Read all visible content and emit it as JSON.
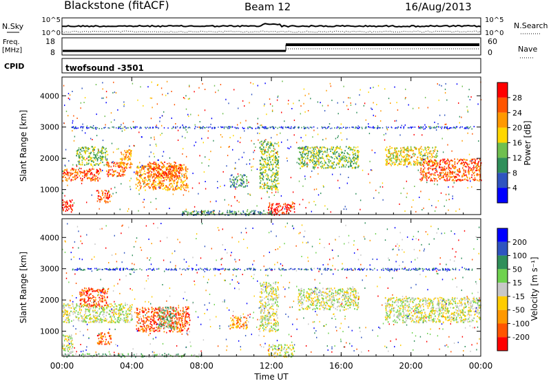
{
  "header": {
    "title": "Blackstone (fitACF)",
    "beam": "Beam 12",
    "date": "16/Aug/2013"
  },
  "nsky_panel": {
    "left_label": "N.Sky",
    "right_label": "N.Search",
    "ytick_top": "10^5",
    "ytick_bottom": "10^0"
  },
  "freq_panel": {
    "left_label_1": "Freq.",
    "left_label_2": "[MHz]",
    "right_label": "Nave",
    "left_ticks": [
      "18",
      "8"
    ],
    "right_ticks": [
      "60",
      "0"
    ]
  },
  "cpid_panel": {
    "label": "CPID",
    "value": "twofsound -3501"
  },
  "colors": {
    "power_scale": [
      "#0000ff",
      "#2f54c0",
      "#2f8f5a",
      "#6fbf4f",
      "#ffd700",
      "#ff9900",
      "#ff5500",
      "#ff0000"
    ],
    "velocity_scale": [
      "#ff0000",
      "#ff5500",
      "#ff9900",
      "#ffcc00",
      "#c8c8c8",
      "#6fd24f",
      "#2f8f5a",
      "#2f54c0",
      "#0000ff"
    ]
  },
  "chart_data": [
    {
      "type": "heatmap",
      "panel": "power",
      "xlabel": "",
      "ylabel": "Slant Range [km]",
      "ylim": [
        200,
        4600
      ],
      "yticks": [
        "1000",
        "2000",
        "3000",
        "4000"
      ],
      "colorbar_label": "Power [dB]",
      "colorbar_ticks": [
        "28",
        "24",
        "20",
        "16",
        "12",
        "8",
        "4"
      ],
      "regions": [
        {
          "t0": 0.0,
          "t1": 0.6,
          "r0": 300,
          "r1": 700,
          "level": 7
        },
        {
          "t0": 0.0,
          "t1": 2.2,
          "r0": 1300,
          "r1": 1700,
          "level": 6
        },
        {
          "t0": 0.8,
          "t1": 2.6,
          "r0": 1800,
          "r1": 2400,
          "level": 3
        },
        {
          "t0": 2.5,
          "t1": 3.6,
          "r0": 1450,
          "r1": 1900,
          "level": 6
        },
        {
          "t0": 3.3,
          "t1": 4.0,
          "r0": 1700,
          "r1": 2300,
          "level": 5
        },
        {
          "t0": 2.0,
          "t1": 2.8,
          "r0": 600,
          "r1": 1000,
          "level": 6
        },
        {
          "t0": 4.2,
          "t1": 7.2,
          "r0": 1000,
          "r1": 1800,
          "level": 5
        },
        {
          "t0": 4.8,
          "t1": 6.8,
          "r0": 1400,
          "r1": 1900,
          "level": 6
        },
        {
          "t0": 9.6,
          "t1": 10.6,
          "r0": 1100,
          "r1": 1500,
          "level": 2
        },
        {
          "t0": 11.8,
          "t1": 13.3,
          "r0": 150,
          "r1": 600,
          "level": 7
        },
        {
          "t0": 11.3,
          "t1": 12.4,
          "r0": 1000,
          "r1": 2600,
          "level": 3
        },
        {
          "t0": 13.5,
          "t1": 17.0,
          "r0": 1700,
          "r1": 2400,
          "level": 3
        },
        {
          "t0": 18.5,
          "t1": 21.5,
          "r0": 1800,
          "r1": 2400,
          "level": 4
        },
        {
          "t0": 20.5,
          "t1": 24.0,
          "r0": 1300,
          "r1": 2000,
          "level": 6
        },
        {
          "t0": 6.8,
          "t1": 12.0,
          "r0": 150,
          "r1": 350,
          "level": 2
        }
      ]
    },
    {
      "type": "heatmap",
      "panel": "velocity",
      "xlabel": "Time UT",
      "ylabel": "Slant Range [km]",
      "ylim": [
        200,
        4600
      ],
      "yticks": [
        "1000",
        "2000",
        "3000",
        "4000"
      ],
      "xticks": [
        "00:00",
        "04:00",
        "08:00",
        "12:00",
        "16:00",
        "20:00",
        "00:00"
      ],
      "xlim": [
        0,
        24
      ],
      "colorbar_label": "Velocity [m s⁻¹]",
      "colorbar_ticks": [
        "200",
        "100",
        "50",
        "15",
        "-15",
        "-50",
        "-100",
        "-200"
      ],
      "regions": [
        {
          "t0": 0.0,
          "t1": 0.6,
          "r0": 300,
          "r1": 900,
          "level": 4
        },
        {
          "t0": 0.0,
          "t1": 4.0,
          "r0": 1300,
          "r1": 1900,
          "level": 4
        },
        {
          "t0": 1.0,
          "t1": 2.6,
          "r0": 1800,
          "r1": 2400,
          "level": 1
        },
        {
          "t0": 2.0,
          "t1": 2.8,
          "r0": 600,
          "r1": 1000,
          "level": 1
        },
        {
          "t0": 4.2,
          "t1": 7.3,
          "r0": 1000,
          "r1": 1800,
          "level": 1
        },
        {
          "t0": 5.5,
          "t1": 6.5,
          "r0": 1100,
          "r1": 1800,
          "level": 5
        },
        {
          "t0": 9.6,
          "t1": 10.6,
          "r0": 1100,
          "r1": 1500,
          "level": 2
        },
        {
          "t0": 11.8,
          "t1": 13.3,
          "r0": 150,
          "r1": 600,
          "level": 4
        },
        {
          "t0": 11.3,
          "t1": 12.4,
          "r0": 1000,
          "r1": 2600,
          "level": 4
        },
        {
          "t0": 13.5,
          "t1": 17.0,
          "r0": 1700,
          "r1": 2400,
          "level": 4
        },
        {
          "t0": 18.5,
          "t1": 24.0,
          "r0": 1300,
          "r1": 2100,
          "level": 4
        },
        {
          "t0": 0.0,
          "t1": 8.0,
          "r0": 150,
          "r1": 300,
          "level": 5
        }
      ]
    }
  ]
}
